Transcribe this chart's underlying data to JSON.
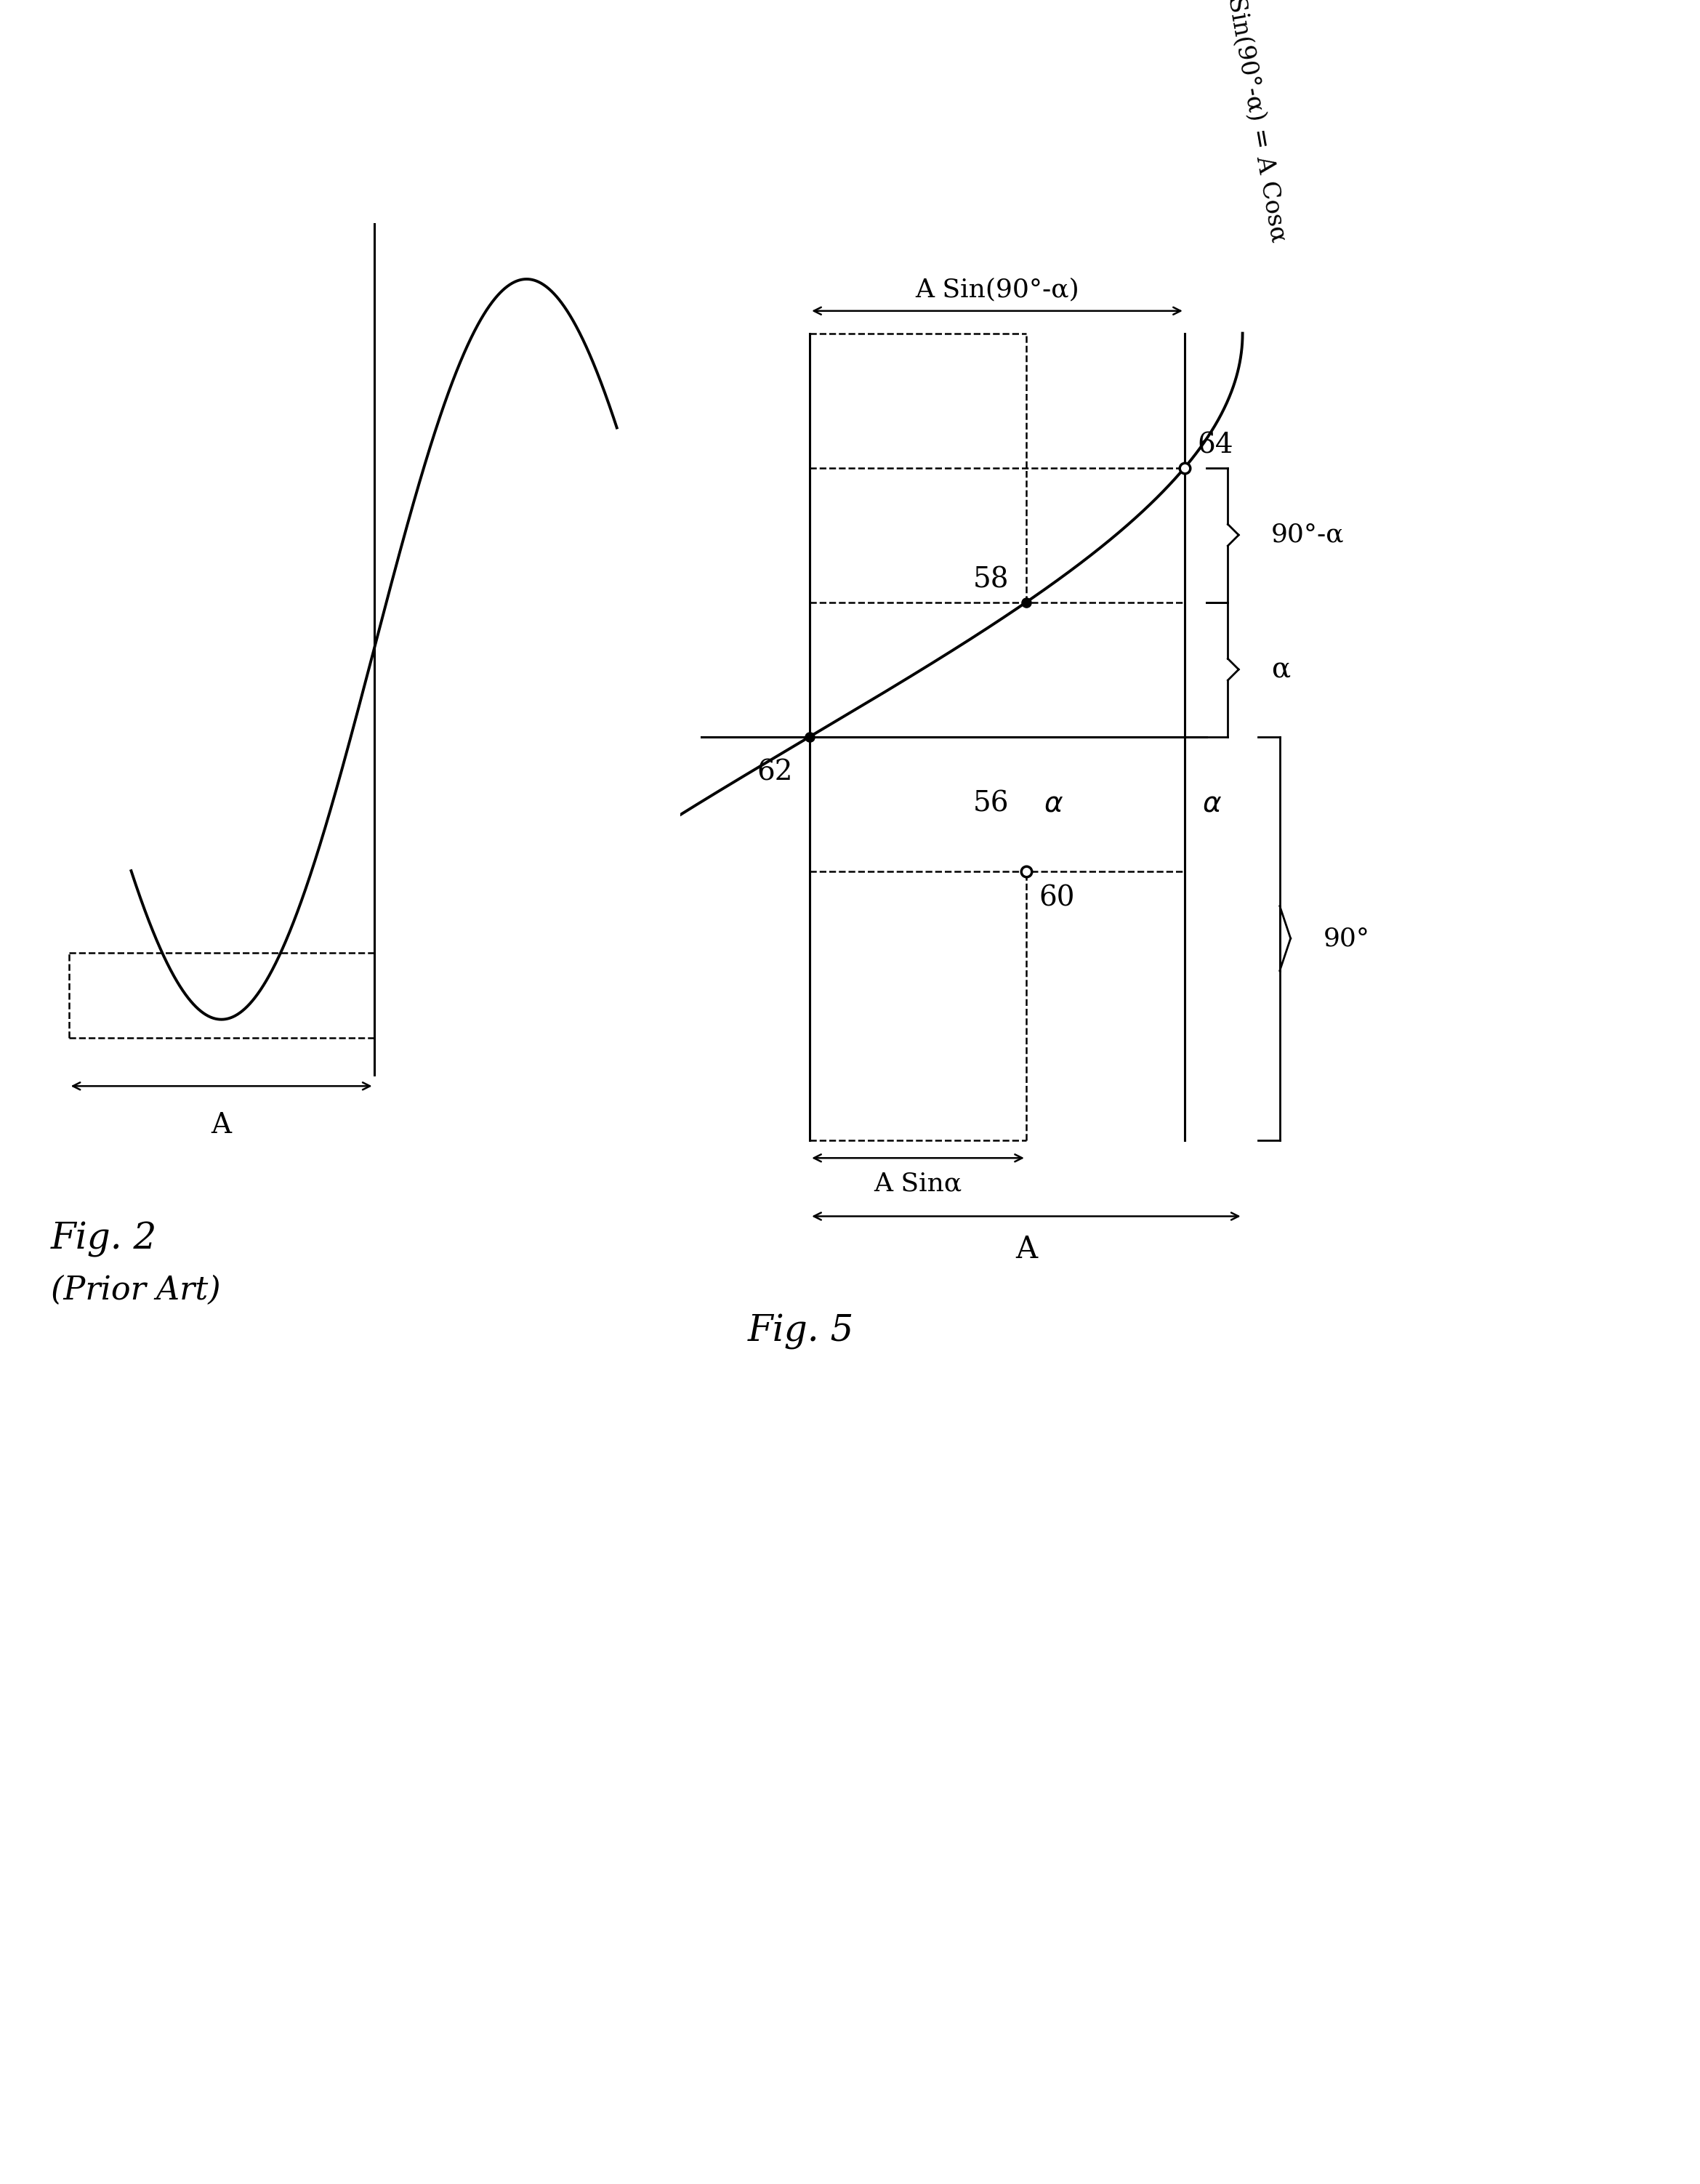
{
  "fig_width": 23.39,
  "fig_height": 30.05,
  "bg_color": "#ffffff",
  "lc": "#000000",
  "alpha_deg": 30,
  "A": 1.0,
  "fig2_title": "Fig. 2",
  "fig2_subtitle": "(Prior Art)",
  "fig5_title": "Fig. 5",
  "lw_main": 2.8,
  "lw_axis": 2.2,
  "lw_dash": 1.8,
  "lw_bracket": 2.0,
  "fs_label": 28,
  "fs_greek": 28,
  "fs_title": 36,
  "fs_annot": 26,
  "fs_eq": 24
}
